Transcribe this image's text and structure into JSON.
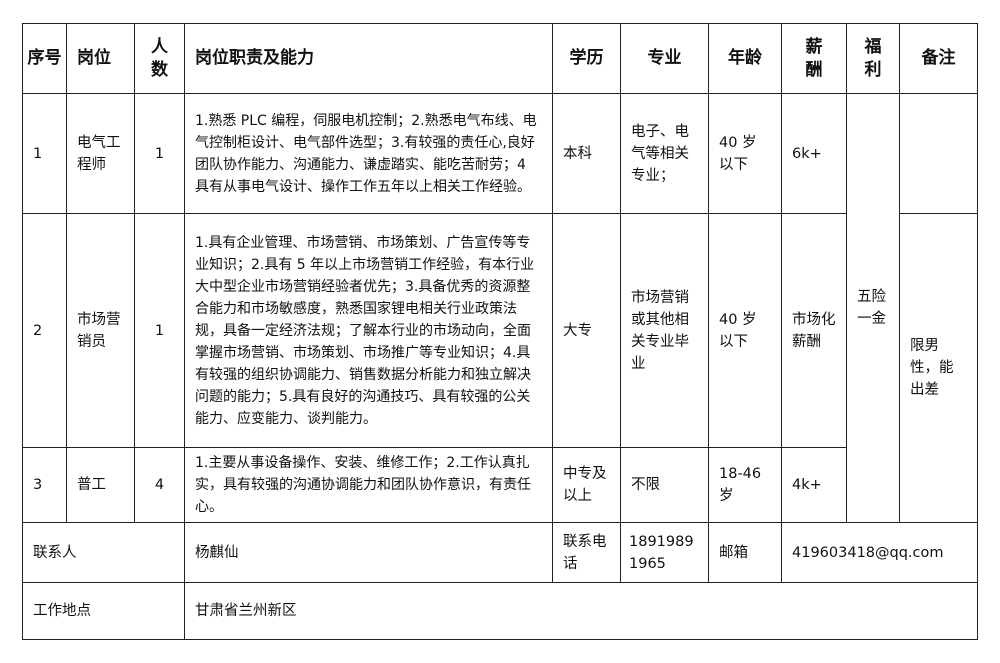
{
  "headers": [
    "序号",
    "岗位",
    "人数",
    "岗位职责及能力",
    "学历",
    "专业",
    "年龄",
    "薪酬",
    "福利",
    "备注"
  ],
  "rows": [
    {
      "no": "1",
      "position": "电气工程师",
      "count": "1",
      "duties": "1.熟悉 PLC 编程，伺服电机控制；2.熟悉电气布线、电气控制柜设计、电气部件选型；3.有较强的责任心,良好团队协作能力、沟通能力、谦虚踏实、能吃苦耐劳；4 具有从事电气设计、操作工作五年以上相关工作经验。",
      "education": "本科",
      "major": "电子、电气等相关专业；",
      "age": "40 岁以下",
      "salary": "6k+"
    },
    {
      "no": "2",
      "position": "市场营销员",
      "count": "1",
      "duties": "1.具有企业管理、市场营销、市场策划、广告宣传等专业知识；2.具有 5 年以上市场营销工作经验，有本行业大中型企业市场营销经验者优先；3.具备优秀的资源整合能力和市场敏感度，熟悉国家锂电相关行业政策法规，具备一定经济法规；了解本行业的市场动向，全面掌握市场营销、市场策划、市场推广等专业知识；4.具有较强的组织协调能力、销售数据分析能力和独立解决问题的能力；5.具有良好的沟通技巧、具有较强的公关能力、应变能力、谈判能力。",
      "education": "大专",
      "major": "市场营销或其他相关专业毕业",
      "age": "40 岁以下",
      "salary": "市场化薪酬",
      "remark": "限男性，能出差"
    },
    {
      "no": "3",
      "position": "普工",
      "count": "4",
      "duties": "1.主要从事设备操作、安装、维修工作；2.工作认真扎实，具有较强的沟通协调能力和团队协作意识，有责任心。",
      "education": "中专及以上",
      "major": "不限",
      "age": "18-46 岁",
      "salary": "4k+"
    }
  ],
  "benefits": "五险一金",
  "contact": {
    "label": "联系人",
    "name": "杨麒仙",
    "phone_label": "联系电话",
    "phone": "18919891965",
    "email_label": "邮箱",
    "email": "419603418@qq.com"
  },
  "location": {
    "label": "工作地点",
    "value": "甘肃省兰州新区"
  }
}
